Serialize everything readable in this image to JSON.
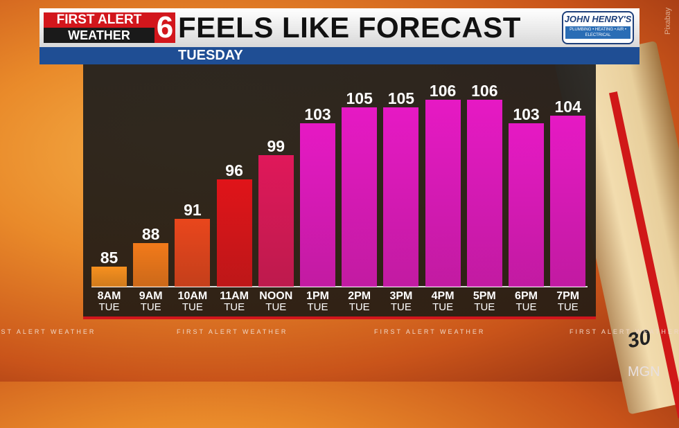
{
  "header": {
    "logo_line1": "FIRST ALERT",
    "logo_line2": "WEATHER",
    "logo_number": "6",
    "title": "FEELS LIKE FORECAST",
    "subtitle": "TUESDAY",
    "sponsor": "JOHN HENRY'S",
    "sponsor_services": "PLUMBING • HEATING • AIR • ELECTRICAL"
  },
  "credits": {
    "photo": "Pixabay",
    "agency": "MGN"
  },
  "ticker": [
    "FIRST ALERT WEATHER",
    "FIRST ALERT WEATHER",
    "FIRST ALERT WEATHER",
    "FIRST ALERT WEATHER"
  ],
  "chart_data": {
    "type": "bar",
    "title": "FEELS LIKE FORECAST",
    "subtitle": "TUESDAY",
    "categories": [
      "8AM",
      "9AM",
      "10AM",
      "11AM",
      "NOON",
      "1PM",
      "2PM",
      "3PM",
      "4PM",
      "5PM",
      "6PM",
      "7PM"
    ],
    "category_sublabels": [
      "TUE",
      "TUE",
      "TUE",
      "TUE",
      "TUE",
      "TUE",
      "TUE",
      "TUE",
      "TUE",
      "TUE",
      "TUE",
      "TUE"
    ],
    "values": [
      85,
      88,
      91,
      96,
      99,
      103,
      105,
      105,
      106,
      106,
      103,
      104
    ],
    "colors": [
      "#f7901e",
      "#f27a1a",
      "#e9461c",
      "#e01419",
      "#e0185a",
      "#e619c4",
      "#e619c4",
      "#e619c4",
      "#e619c4",
      "#e619c4",
      "#e619c4",
      "#e619c4"
    ],
    "ylim": [
      82.5,
      110
    ],
    "grid": false,
    "data_labels": true
  }
}
